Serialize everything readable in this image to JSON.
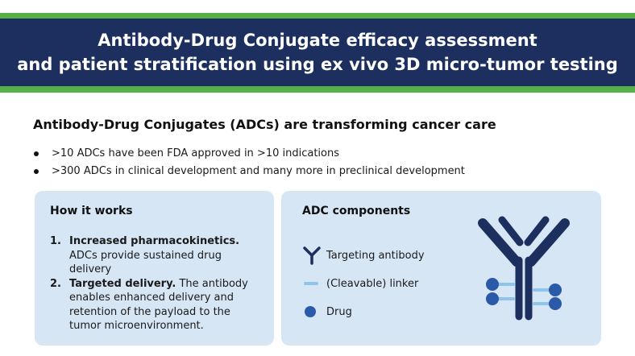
{
  "banner": {
    "title_line1": "Antibody-Drug Conjugate efficacy assessment",
    "title_line2": "and patient stratification using ex vivo 3D micro-tumor testing"
  },
  "intro": {
    "heading": "Antibody-Drug Conjugates (ADCs) are transforming cancer care",
    "bullets": [
      ">10 ADCs have been FDA approved in >10 indications",
      ">300 ADCs in clinical development and many more in preclinical development"
    ]
  },
  "how_it_works": {
    "title": "How it works",
    "steps": [
      {
        "number": "1.",
        "lead": "Increased pharmacokinetics.",
        "text": "ADCs provide sustained drug delivery"
      },
      {
        "number": "2.",
        "lead": "Targeted delivery.",
        "text": "The antibody enables enhanced delivery and retention of the payload to the tumor microenvironment."
      }
    ]
  },
  "components": {
    "title": "ADC components",
    "items": [
      {
        "icon": "antibody-icon",
        "label": "Targeting antibody"
      },
      {
        "icon": "linker-icon",
        "label": "(Cleavable) linker"
      },
      {
        "icon": "drug-icon",
        "label": "Drug"
      }
    ]
  },
  "colors": {
    "banner": "#1d2f5e",
    "accent_green": "#56b146",
    "card_bg": "#d6e6f5",
    "antibody": "#1d2f5e",
    "linker": "#8fc4ea",
    "drug": "#2b5aa8"
  }
}
